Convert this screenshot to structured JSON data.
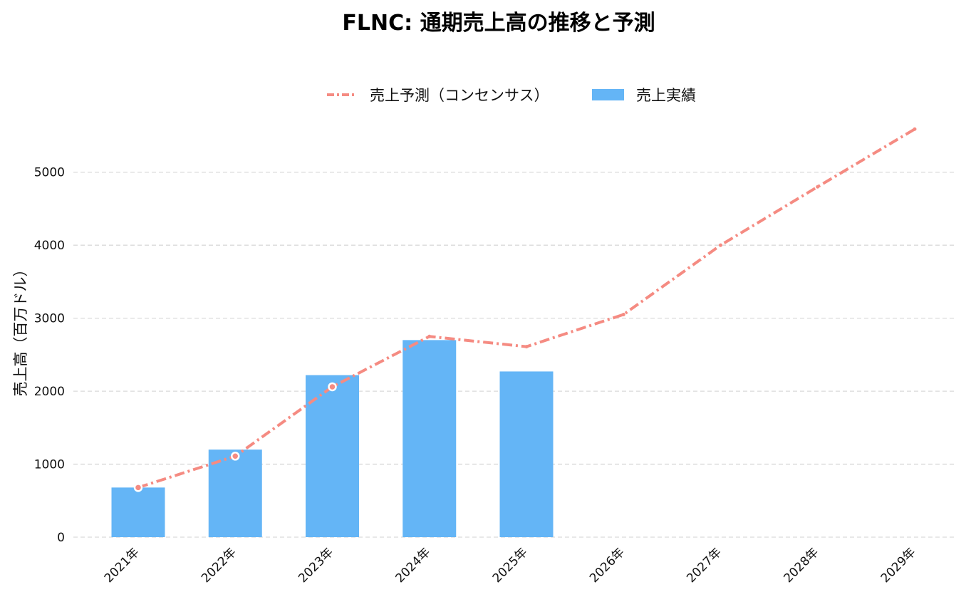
{
  "chart_data": {
    "type": "bar",
    "title": "FLNC: 通期売上高の推移と予測",
    "xlabel": "",
    "ylabel": "売上高（百万ドル）",
    "categories": [
      "2021年",
      "2022年",
      "2023年",
      "2024年",
      "2025年",
      "2026年",
      "2027年",
      "2028年",
      "2029年"
    ],
    "ylim": [
      0,
      5700
    ],
    "yticks": [
      0,
      1000,
      2000,
      3000,
      4000,
      5000
    ],
    "grid": true,
    "legend_position": "top-center",
    "series": [
      {
        "name": "売上予測（コンセンサス）",
        "type": "line",
        "style": "dash-dot",
        "color": "#f58b82",
        "values": [
          680,
          1110,
          2060,
          2750,
          2610,
          3050,
          4000,
          4800,
          5590
        ]
      },
      {
        "name": "売上実績",
        "type": "bar",
        "color": "#64b5f6",
        "values": [
          680,
          1200,
          2220,
          2700,
          2270,
          null,
          null,
          null,
          null
        ]
      }
    ]
  }
}
